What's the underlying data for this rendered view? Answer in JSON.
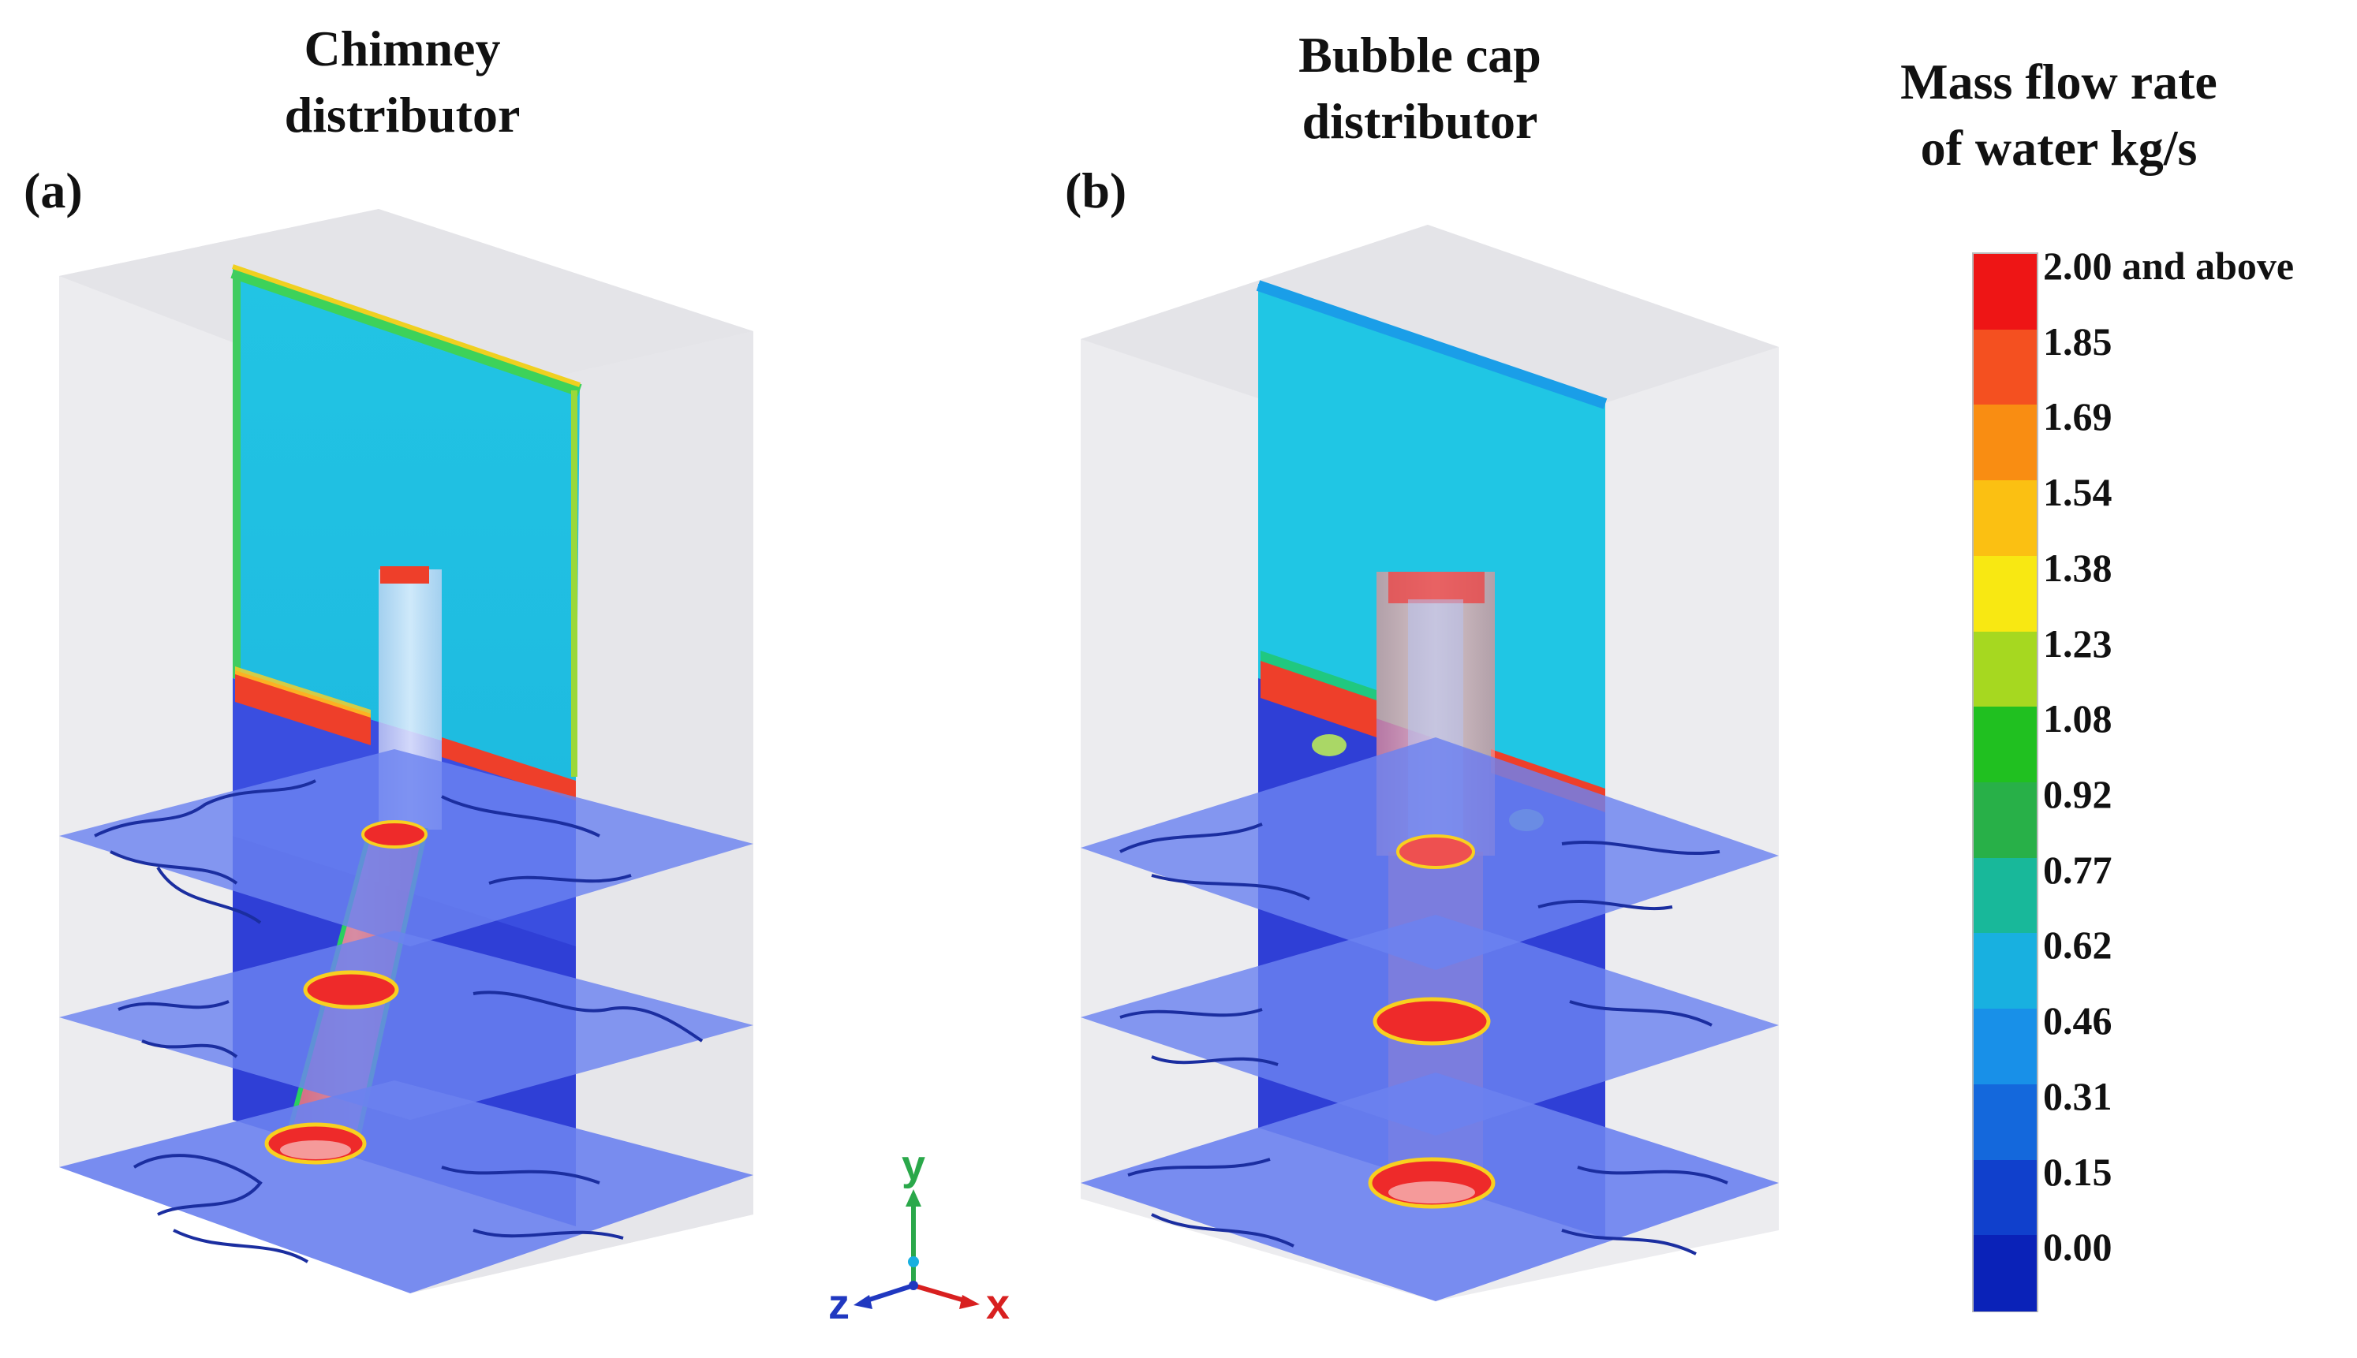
{
  "panels": [
    {
      "title_line1": "Chimney",
      "title_line2": "distributor",
      "label": "(a)"
    },
    {
      "title_line1": "Bubble cap",
      "title_line2": "distributor",
      "label": "(b)"
    }
  ],
  "colorbar": {
    "title_line1": "Mass flow rate",
    "title_line2": "of water kg/s",
    "levels": [
      "2.00 and above",
      "1.85",
      "1.69",
      "1.54",
      "1.38",
      "1.23",
      "1.08",
      "0.92",
      "0.77",
      "0.62",
      "0.46",
      "0.31",
      "0.15",
      "0.00"
    ],
    "colors": [
      "#ee1515",
      "#f45020",
      "#f98d12",
      "#fbc012",
      "#f8e812",
      "#a6d820",
      "#20c020",
      "#28b048",
      "#18b89a",
      "#18b0e0",
      "#1890e8",
      "#1468dc",
      "#1040cc",
      "#0a22b8"
    ]
  },
  "axes": {
    "y": "y",
    "x": "x",
    "z": "z"
  },
  "colors": {
    "plane": "#4b6cf0",
    "background_field": "#22c4e4",
    "pipe_core": "#ee2a2a",
    "box_face": "#e9e9ec",
    "contour": "#1b2ea0"
  }
}
